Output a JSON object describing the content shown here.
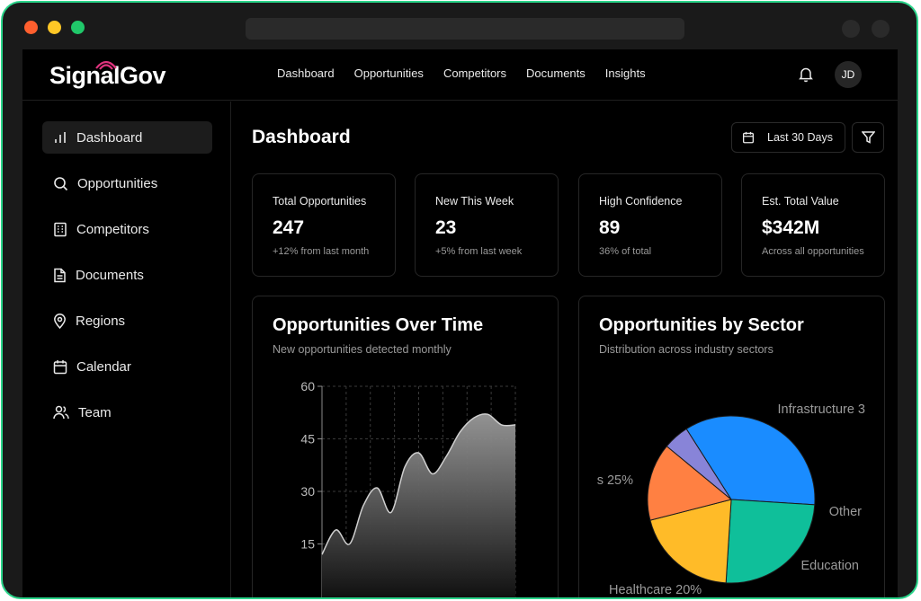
{
  "app": {
    "logo": "SignalGov"
  },
  "colors": {
    "brand_accent": "#e0337e",
    "frame_border": "#2ad48a"
  },
  "top_nav": [
    "Dashboard",
    "Opportunities",
    "Competitors",
    "Documents",
    "Insights"
  ],
  "user": {
    "initials": "JD"
  },
  "sidebar": {
    "items": [
      {
        "label": "Dashboard",
        "icon": "bar-chart-icon",
        "active": true
      },
      {
        "label": "Opportunities",
        "icon": "search-icon"
      },
      {
        "label": "Competitors",
        "icon": "building-icon"
      },
      {
        "label": "Documents",
        "icon": "document-icon"
      },
      {
        "label": "Regions",
        "icon": "map-pin-icon"
      },
      {
        "label": "Calendar",
        "icon": "calendar-icon"
      },
      {
        "label": "Team",
        "icon": "users-icon"
      }
    ]
  },
  "page": {
    "title": "Dashboard",
    "date_range": "Last 30 Days"
  },
  "stats": [
    {
      "label": "Total Opportunities",
      "value": "247",
      "sub": "+12% from last month"
    },
    {
      "label": "New This Week",
      "value": "23",
      "sub": "+5% from last week"
    },
    {
      "label": "High Confidence",
      "value": "89",
      "sub": "36% of total"
    },
    {
      "label": "Est. Total Value",
      "value": "$342M",
      "sub": "Across all opportunities"
    }
  ],
  "cards": {
    "over_time": {
      "title": "Opportunities Over Time",
      "subtitle": "New opportunities detected monthly"
    },
    "by_sector": {
      "title": "Opportunities by Sector",
      "subtitle": "Distribution across industry sectors"
    }
  },
  "chart_data": [
    {
      "type": "area",
      "ylim": [
        0,
        60
      ],
      "y_ticks": [
        "60",
        "45",
        "30",
        "15"
      ],
      "x": [
        0,
        1,
        2,
        3,
        4,
        5,
        6,
        7,
        8,
        9,
        10,
        11,
        12,
        13,
        14
      ],
      "values": [
        12,
        19,
        15,
        26,
        31,
        24,
        37,
        41,
        35,
        40,
        47,
        51,
        52,
        49,
        49
      ],
      "grid": true,
      "color": "#8a8a8a"
    },
    {
      "type": "pie",
      "slices": [
        {
          "label": "Infrastructure 3",
          "value": 35,
          "color": "#1a8cff"
        },
        {
          "label": "s 25%",
          "value": 25,
          "color": "#0fbf9a"
        },
        {
          "label": "Healthcare 20%",
          "value": 20,
          "color": "#ffbb28"
        },
        {
          "label": "Education",
          "value": 15,
          "color": "#ff8042"
        },
        {
          "label": "Other",
          "value": 5,
          "color": "#8884d8"
        }
      ]
    }
  ]
}
